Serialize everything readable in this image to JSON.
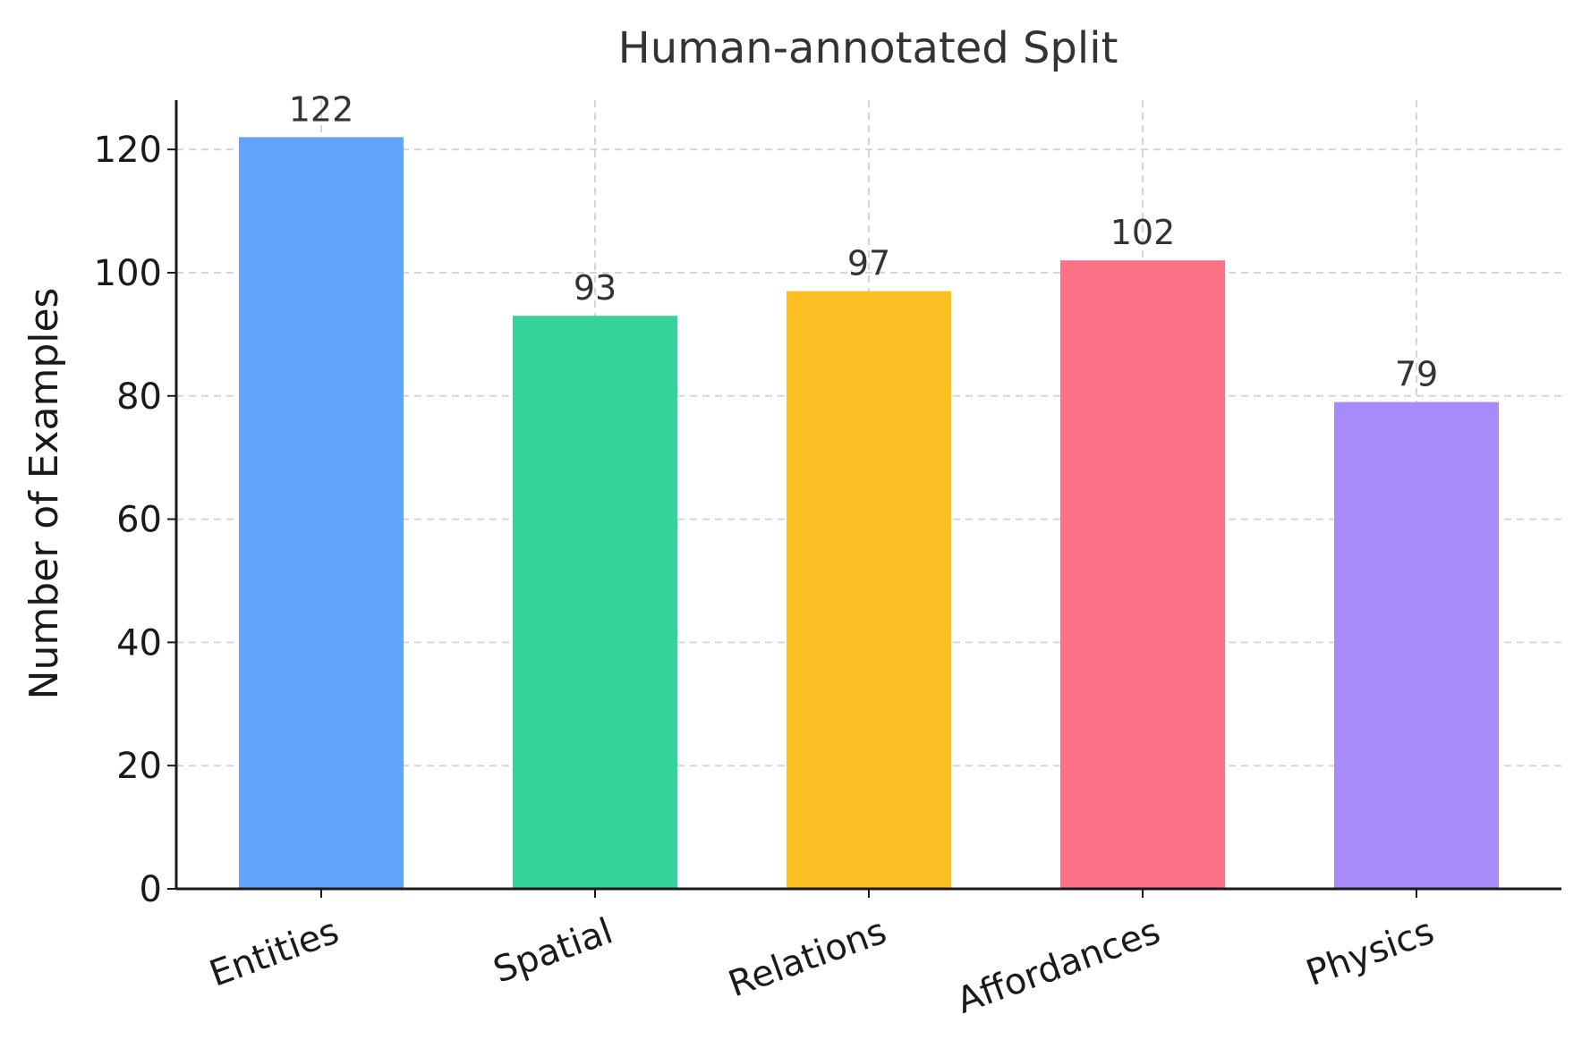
{
  "chart_data": {
    "type": "bar",
    "title": "Human-annotated Split",
    "xlabel": "",
    "ylabel": "Number of Examples",
    "categories": [
      "Entities",
      "Spatial",
      "Relations",
      "Affordances",
      "Physics"
    ],
    "values": [
      122,
      93,
      97,
      102,
      79
    ],
    "data_labels": [
      "122",
      "93",
      "97",
      "102",
      "79"
    ],
    "colors": [
      "#60a5fa",
      "#34d399",
      "#fbbf24",
      "#fb7185",
      "#a78bfa"
    ],
    "ylim": [
      0,
      128
    ],
    "yticks": [
      0,
      20,
      40,
      60,
      80,
      100,
      120
    ],
    "ytick_labels": [
      "0",
      "20",
      "40",
      "60",
      "80",
      "100",
      "120"
    ],
    "grid": true,
    "xtick_rotation": 20
  }
}
